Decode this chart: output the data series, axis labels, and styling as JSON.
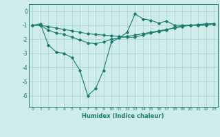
{
  "xlabel": "Humidex (Indice chaleur)",
  "ylabel": "",
  "xlim": [
    -0.5,
    23.5
  ],
  "ylim": [
    -6.8,
    0.5
  ],
  "xticks": [
    0,
    1,
    2,
    3,
    4,
    5,
    6,
    7,
    8,
    9,
    10,
    11,
    12,
    13,
    14,
    15,
    16,
    17,
    18,
    19,
    20,
    21,
    22,
    23
  ],
  "yticks": [
    0,
    -1,
    -2,
    -3,
    -4,
    -5,
    -6
  ],
  "background_color": "#ceecea",
  "grid_color": "#aed4d0",
  "line_color": "#1a7a6e",
  "line1_x": [
    0,
    1,
    2,
    3,
    4,
    5,
    6,
    7,
    8,
    9,
    10,
    11,
    12,
    13,
    14,
    15,
    16,
    17,
    18,
    19,
    20,
    21,
    22,
    23
  ],
  "line1_y": [
    -1.0,
    -0.9,
    -2.4,
    -2.9,
    -3.0,
    -3.3,
    -4.2,
    -6.0,
    -5.5,
    -4.2,
    -2.2,
    -1.9,
    -1.5,
    -0.2,
    -0.55,
    -0.65,
    -0.85,
    -0.7,
    -1.0,
    -1.0,
    -1.0,
    -1.0,
    -1.0,
    -0.9
  ],
  "line2_x": [
    0,
    1,
    2,
    3,
    4,
    5,
    6,
    7,
    8,
    9,
    10,
    11,
    12,
    13,
    14,
    15,
    16,
    17,
    18,
    19,
    20,
    21,
    22,
    23
  ],
  "line2_y": [
    -1.0,
    -1.0,
    -1.1,
    -1.2,
    -1.3,
    -1.4,
    -1.5,
    -1.6,
    -1.65,
    -1.7,
    -1.75,
    -1.8,
    -1.85,
    -1.85,
    -1.7,
    -1.55,
    -1.45,
    -1.35,
    -1.15,
    -1.05,
    -1.0,
    -0.95,
    -0.9,
    -0.9
  ],
  "line3_x": [
    0,
    1,
    2,
    3,
    4,
    5,
    6,
    7,
    8,
    9,
    10,
    11,
    12,
    13,
    14,
    15,
    16,
    17,
    18,
    19,
    20,
    21,
    22,
    23
  ],
  "line3_y": [
    -1.0,
    -1.0,
    -1.35,
    -1.55,
    -1.65,
    -1.85,
    -2.05,
    -2.25,
    -2.3,
    -2.2,
    -2.0,
    -1.9,
    -1.8,
    -1.7,
    -1.6,
    -1.5,
    -1.4,
    -1.3,
    -1.2,
    -1.1,
    -1.0,
    -1.0,
    -0.9,
    -0.9
  ]
}
